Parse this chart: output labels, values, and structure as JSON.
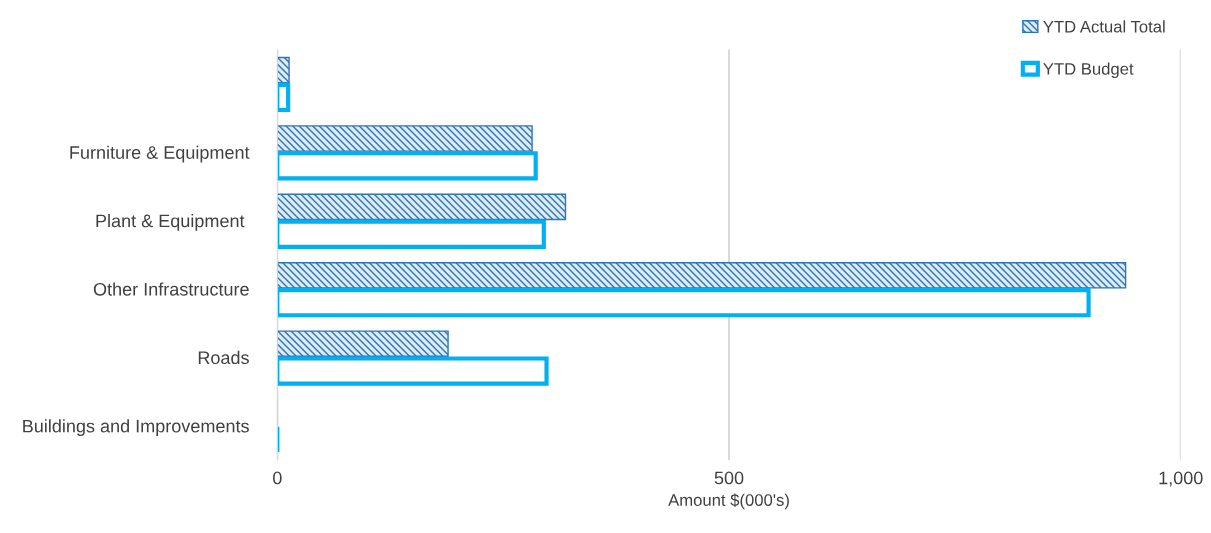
{
  "chart_data": {
    "type": "bar",
    "orientation": "horizontal",
    "categories": [
      null,
      "Furniture & Equipment",
      "Plant & Equipment ",
      "Other Infrastructure",
      "Roads",
      "Buildings and Improvements"
    ],
    "series": [
      {
        "name": "YTD Actual Total",
        "color": "#2e75b6",
        "values": [
          13,
          282,
          319,
          939,
          189,
          0
        ]
      },
      {
        "name": "YTD Budget",
        "color": "#00b0f0",
        "values": [
          12,
          286,
          295,
          898,
          298,
          0
        ]
      }
    ],
    "xlabel": "Amount $(000's)",
    "xlim": [
      0,
      1000
    ],
    "xticks": [
      0,
      500,
      {
        "value": 1000,
        "label": "1,000"
      }
    ],
    "grid": "x",
    "legend": "top right"
  }
}
